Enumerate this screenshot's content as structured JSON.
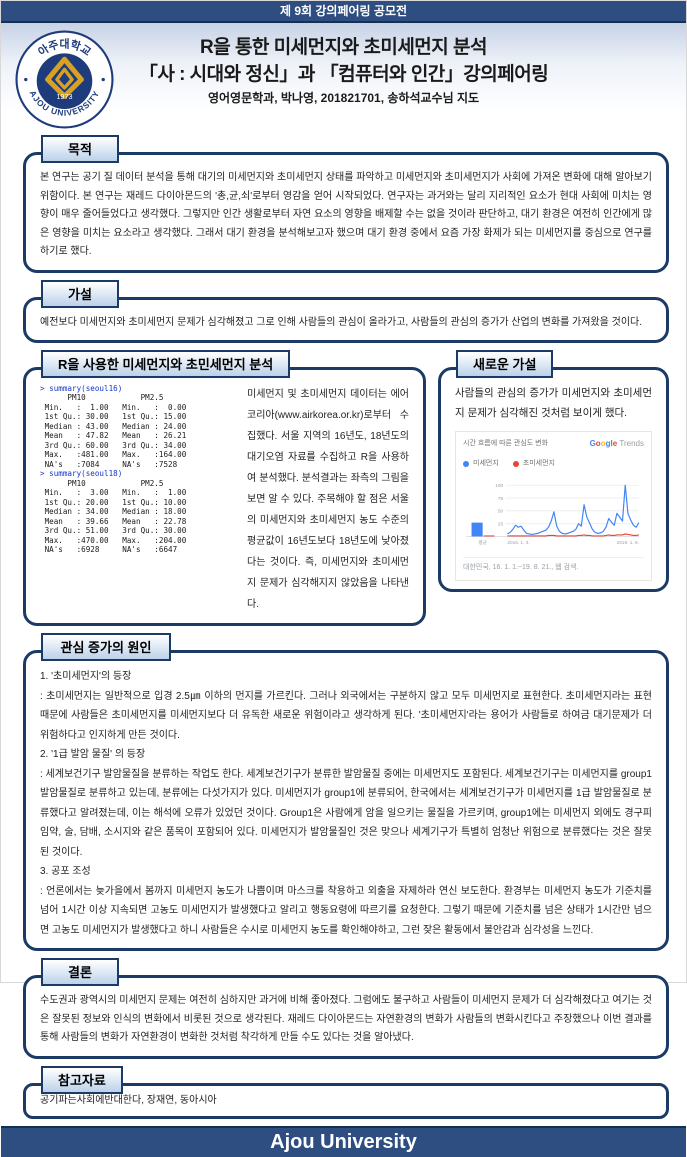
{
  "banner": {
    "text": "제 9회 강의페어링 공모전"
  },
  "header": {
    "title_line1": "R을 통한 미세먼지와 초미세먼지 분석",
    "title_line2": "「사 : 시대와 정신」과 「컴퓨터와 인간」강의페어링",
    "title_line3": "영어영문학과, 박나영, 201821701, 송하석교수님 지도",
    "logo": {
      "top_text": "아주대학교",
      "bottom_text": "AJOU UNIVERSITY",
      "year": "1973"
    }
  },
  "purpose": {
    "label": "목적",
    "body": "본 연구는 공기 질 데이터 분석을 통해 대기의 미세먼지와 초미세먼지 상태를 파악하고 미세먼지와 초미세먼지가 사회에 가져온 변화에 대해 알아보기 위함이다. 본 연구는 재레드 다이아몬드의 '총,균,쇠'로부터 영감을 얻어 시작되었다. 연구자는 과거와는 달리 지리적인 요소가 현대 사회에 미치는 영향이 매우 줄어들었다고 생각했다. 그렇지만 인간 생활로부터 자연 요소의 영향을 배제할 수는 없을 것이라 판단하고, 대기 환경은 여전히 인간에게 많은 영향을 미치는 요소라고 생각했다. 그래서 대기 환경을 분석해보고자 했으며 대기 환경 중에서 요즘 가장 화제가 되는 미세먼지를 중심으로 연구를 하기로 했다."
  },
  "hypothesis": {
    "label": "가설",
    "body": "예전보다 미세먼지와 초미세먼지 문제가 심각해졌고 그로 인해 사람들의 관심이 올라가고, 사람들의 관심의 증가가 산업의 변화를 가져왔을 것이다."
  },
  "r_analysis": {
    "label": "R을 사용한 미세먼지와 초민세먼지 분석",
    "block1": {
      "prompt": "> summary(seoul16)",
      "output": "      PM10            PM2.5      \n Min.   :  1.00   Min.   :  0.00 \n 1st Qu.: 30.00   1st Qu.: 15.00 \n Median : 43.00   Median : 24.00 \n Mean   : 47.82   Mean   : 26.21 \n 3rd Qu.: 60.00   3rd Qu.: 34.00 \n Max.   :481.00   Max.   :164.00 \n NA's   :7084     NA's   :7528   "
    },
    "block2": {
      "prompt": "> summary(seoul18)",
      "output": "      PM10            PM2.5      \n Min.   :  3.00   Min.   :  1.00 \n 1st Qu.: 20.00   1st Qu.: 10.00 \n Median : 34.00   Median : 18.00 \n Mean   : 39.66   Mean   : 22.78 \n 3rd Qu.: 51.00   3rd Qu.: 30.00 \n Max.   :470.00   Max.   :204.00 \n NA's   :6928     NA's   :6647   "
    },
    "description": "미세먼지 및 초미세먼지 데이터는 에어코리아(www.airkorea.or.kr)로부터 수집했다. 서울 지역의 16년도, 18년도의 대기오염 자료를 수집하고 R을 사용하여 분석했다. 분석결과는 좌측의 그림을 보면 알 수 있다. 주목해야 할 점은 서울의 미세먼지와 초미세먼지 농도 수준의 평균값이 16년도보다 18년도에 낮아졌다는 것이다. 즉, 미세먼지와 초미세먼지 문제가 심각해지지 않았음을 나타낸다."
  },
  "new_hypothesis": {
    "label": "새로운 가설",
    "body": "사람들의 관심의 증가가 미세먼지와 초미세먼지 문제가 심각해진 것처럼 보이게 했다.",
    "trends": {
      "title": "시간 흐름에 따른 관심도 변화",
      "brand_google": "Google",
      "brand_google_colors": [
        "#4285F4",
        "#EA4335",
        "#FBBC05",
        "#4285F4",
        "#34A853",
        "#EA4335"
      ],
      "brand_trends": "Trends",
      "avg_label": "평균",
      "footnote": "대한민국, 16. 1. 1.~19. 8. 21., 웹 검색."
    }
  },
  "chart_data": {
    "type": "line",
    "title": "시간 흐름에 따른 관심도 변화",
    "source": "Google Trends",
    "ylim": [
      0,
      100
    ],
    "yticks": [
      25,
      50,
      75,
      100
    ],
    "x_axis_labels": [
      "2016. 1. 3.",
      "2019. 1. 6."
    ],
    "x_range": "2016-01 ~ 2019-09 (주별 검색 관심도)",
    "average_bars": [
      {
        "name": "미세먼지",
        "value": 27
      },
      {
        "name": "초미세먼지",
        "value": 2
      }
    ],
    "series": [
      {
        "name": "미세먼지",
        "color": "#4285f4",
        "values": [
          5,
          8,
          14,
          22,
          18,
          20,
          12,
          6,
          5,
          4,
          5,
          6,
          8,
          10,
          12,
          18,
          30,
          48,
          20,
          10,
          6,
          5,
          6,
          8,
          10,
          14,
          25,
          20,
          62,
          38,
          26,
          14,
          8,
          6,
          7,
          10,
          18,
          35,
          28,
          22,
          45,
          38,
          30,
          100,
          45,
          32,
          22,
          18,
          27
        ]
      },
      {
        "name": "초미세먼지",
        "color": "#ea4335",
        "values": [
          1,
          1,
          1,
          1,
          1,
          1,
          1,
          1,
          1,
          1,
          1,
          1,
          1,
          1,
          1,
          2,
          2,
          2,
          1,
          1,
          1,
          1,
          1,
          1,
          1,
          1,
          2,
          2,
          3,
          2,
          2,
          1,
          1,
          1,
          1,
          1,
          2,
          3,
          2,
          2,
          3,
          3,
          3,
          5,
          4,
          3,
          2,
          2,
          3
        ]
      }
    ],
    "legend_position": "top-left",
    "grid": true
  },
  "causes": {
    "label": "관심 증가의 원인",
    "paragraphs": [
      "1. '초미세먼지'의 등장",
      ": 초미세먼지는 일반적으로 입경 2.5㎛ 이하의 먼지를 가르킨다. 그러나 외국에서는 구분하지 않고 모두 미세먼지로 표현한다. 초미세먼지라는 표현 때문에 사람들은 초미세먼지를 미세먼지보다 더 유독한 새로운 위험이라고 생각하게 된다. '초미세먼지'라는 용어가 사람들로 하여금 대기문제가 더 위험하다고 인지하게 만든 것이다.",
      "2. '1급 발암 물질' 의 등장",
      ": 세계보건기구 발암물질을 분류하는 작업도 한다. 세계보건기구가 분류한 발암물질 중에는 미세먼지도 포함된다. 세계보건기구는 미세먼지를 group1 발암물질로 분류하고 있는데, 분류에는 다섯가지가 있다. 미세먼지가 group1에 분류되어, 한국에서는 세계보건기구가 미세먼지를 1급 발암물질로 분류했다고 알려졌는데, 이는 해석에 오류가 있었던 것이다. Group1은 사람에게 암을 일으키는 물질을 가르키며, group1에는 미세먼지 외에도 경구피임약, 술, 담배, 소시지와 같은 품목이 포함되어 있다. 미세먼지가 발암물질인 것은 맞으나 세계기구가 특별히 엄청난 위험으로 분류했다는 것은 잘못된 것이다.",
      "3. 공포 조성",
      ": 언론에서는 늦가을에서 봄까지 미세먼지 농도가 나쁨이며 마스크를 착용하고 외출을 자제하라 연신 보도한다. 환경부는 미세먼지 농도가 기준치를 넘어 1시간 이상 지속되면 고농도 미세먼지가 발생했다고 알리고 행동요령에 따르기를 요청한다. 그렇기 때문에 기준치를 넘은 상태가 1시간만 넘으면 고농도 미세먼지가 발생했다고 하니 사람들은 수시로 미세먼지 농도를 확인해야하고, 그런 잦은 활동에서 불안감과 심각성을 느낀다."
    ]
  },
  "conclusion": {
    "label": "결론",
    "body": "수도권과 광역시의 미세먼지 문제는 여전히 심하지만 과거에 비해 좋아졌다. 그럼에도 불구하고 사람들이 미세먼지 문제가 더 심각해졌다고 여기는 것은 잘못된 정보와 인식의 변화에서 비롯된 것으로 생각된다. 재레드 다이아몬드는 자연환경의 변화가 사람들의 변화시킨다고 주장했으나 이번 결과를 통해 사람들의 변화가 자연환경이 변화한 것처럼 착각하게 만들 수도 있다는 것을 알아냈다."
  },
  "references": {
    "label": "참고자료",
    "body": "공기파는사회에반대한다, 장재연, 동아시아"
  },
  "footer": {
    "text": "Ajou University"
  }
}
